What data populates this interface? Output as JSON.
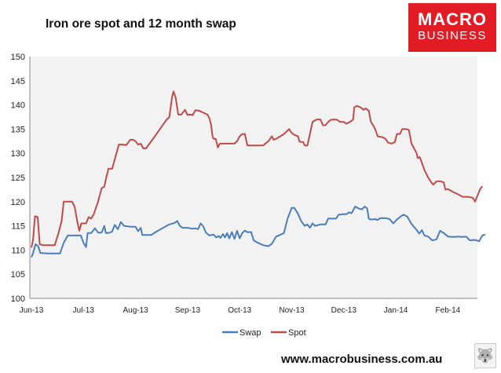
{
  "header": {
    "title": "Iron ore spot and 12 month swap",
    "logo_line1": "MACRO",
    "logo_line2": "BUSINESS"
  },
  "footer": {
    "url": "www.macrobusiness.com.au"
  },
  "colors": {
    "swap": "#4a7ebb",
    "spot": "#be4b48",
    "plot_bg": "#f2f2f2",
    "logo_bg": "#e11c24"
  },
  "chart_data": {
    "type": "line",
    "title": "Iron ore spot and 12 month swap",
    "xlabel": "",
    "ylabel": "",
    "ylim": [
      100,
      150
    ],
    "yticks": [
      100,
      105,
      110,
      115,
      120,
      125,
      130,
      135,
      140,
      145,
      150
    ],
    "xlim": [
      0,
      9.05
    ],
    "xticks": [
      {
        "label": "Jun-13",
        "x": 0
      },
      {
        "label": "Jul-13",
        "x": 1
      },
      {
        "label": "Aug-13",
        "x": 2
      },
      {
        "label": "Sep-13",
        "x": 3
      },
      {
        "label": "Oct-13",
        "x": 4
      },
      {
        "label": "Nov-13",
        "x": 5
      },
      {
        "label": "Dec-13",
        "x": 6
      },
      {
        "label": "Jan-14",
        "x": 7
      },
      {
        "label": "Feb-14",
        "x": 8
      }
    ],
    "legend": {
      "position": "bottom"
    },
    "grid": false,
    "series": [
      {
        "name": "Swap",
        "color": "#4a7ebb",
        "points": [
          [
            0.0,
            108.5
          ],
          [
            0.03,
            109.3
          ],
          [
            0.08,
            111.2
          ],
          [
            0.13,
            110.8
          ],
          [
            0.17,
            109.4
          ],
          [
            0.3,
            109.3
          ],
          [
            0.45,
            109.3
          ],
          [
            0.55,
            109.3
          ],
          [
            0.62,
            111.5
          ],
          [
            0.7,
            113.0
          ],
          [
            0.85,
            113.0
          ],
          [
            0.95,
            113.0
          ],
          [
            1.0,
            111.5
          ],
          [
            1.05,
            110.6
          ],
          [
            1.08,
            113.5
          ],
          [
            1.15,
            113.5
          ],
          [
            1.22,
            114.5
          ],
          [
            1.28,
            113.6
          ],
          [
            1.35,
            113.6
          ],
          [
            1.4,
            115.0
          ],
          [
            1.43,
            113.5
          ],
          [
            1.48,
            113.5
          ],
          [
            1.55,
            113.8
          ],
          [
            1.6,
            115.2
          ],
          [
            1.66,
            114.3
          ],
          [
            1.72,
            115.8
          ],
          [
            1.78,
            115.0
          ],
          [
            1.9,
            114.8
          ],
          [
            2.0,
            114.8
          ],
          [
            2.05,
            113.9
          ],
          [
            2.1,
            114.6
          ],
          [
            2.13,
            113.1
          ],
          [
            2.2,
            113.1
          ],
          [
            2.3,
            113.1
          ],
          [
            2.4,
            113.8
          ],
          [
            2.55,
            114.7
          ],
          [
            2.65,
            115.3
          ],
          [
            2.75,
            115.6
          ],
          [
            2.8,
            116.0
          ],
          [
            2.85,
            115.0
          ],
          [
            2.9,
            114.6
          ],
          [
            3.0,
            114.6
          ],
          [
            3.1,
            114.4
          ],
          [
            3.15,
            114.5
          ],
          [
            3.2,
            114.3
          ],
          [
            3.25,
            115.5
          ],
          [
            3.3,
            114.9
          ],
          [
            3.35,
            113.6
          ],
          [
            3.42,
            113.0
          ],
          [
            3.5,
            113.2
          ],
          [
            3.55,
            112.6
          ],
          [
            3.6,
            112.9
          ],
          [
            3.63,
            112.5
          ],
          [
            3.68,
            113.3
          ],
          [
            3.72,
            112.6
          ],
          [
            3.76,
            113.5
          ],
          [
            3.8,
            112.4
          ],
          [
            3.85,
            113.7
          ],
          [
            3.9,
            112.3
          ],
          [
            3.95,
            114.0
          ],
          [
            4.0,
            112.4
          ],
          [
            4.05,
            113.5
          ],
          [
            4.1,
            114.0
          ],
          [
            4.15,
            113.7
          ],
          [
            4.22,
            113.7
          ],
          [
            4.27,
            112.0
          ],
          [
            4.35,
            111.5
          ],
          [
            4.45,
            111.0
          ],
          [
            4.55,
            110.8
          ],
          [
            4.62,
            111.3
          ],
          [
            4.7,
            112.8
          ],
          [
            4.75,
            113.0
          ],
          [
            4.85,
            113.5
          ],
          [
            4.92,
            116.5
          ],
          [
            5.0,
            118.7
          ],
          [
            5.05,
            118.7
          ],
          [
            5.12,
            117.5
          ],
          [
            5.18,
            116.0
          ],
          [
            5.25,
            115.0
          ],
          [
            5.3,
            115.3
          ],
          [
            5.35,
            114.6
          ],
          [
            5.4,
            115.5
          ],
          [
            5.45,
            115.0
          ],
          [
            5.55,
            115.3
          ],
          [
            5.65,
            115.3
          ],
          [
            5.7,
            116.5
          ],
          [
            5.78,
            116.5
          ],
          [
            5.85,
            116.5
          ],
          [
            5.9,
            117.3
          ],
          [
            6.0,
            117.4
          ],
          [
            6.05,
            117.4
          ],
          [
            6.1,
            117.8
          ],
          [
            6.15,
            117.6
          ],
          [
            6.22,
            119.0
          ],
          [
            6.28,
            118.6
          ],
          [
            6.35,
            118.4
          ],
          [
            6.4,
            119.0
          ],
          [
            6.45,
            118.6
          ],
          [
            6.48,
            116.5
          ],
          [
            6.52,
            116.3
          ],
          [
            6.6,
            116.4
          ],
          [
            6.65,
            116.2
          ],
          [
            6.7,
            116.6
          ],
          [
            6.8,
            116.6
          ],
          [
            6.88,
            116.4
          ],
          [
            6.95,
            115.5
          ],
          [
            7.02,
            116.3
          ],
          [
            7.1,
            117.0
          ],
          [
            7.15,
            117.3
          ],
          [
            7.22,
            116.9
          ],
          [
            7.3,
            115.4
          ],
          [
            7.38,
            114.4
          ],
          [
            7.45,
            113.4
          ],
          [
            7.5,
            114.1
          ],
          [
            7.55,
            113.0
          ],
          [
            7.62,
            112.8
          ],
          [
            7.7,
            112.0
          ],
          [
            7.78,
            112.2
          ],
          [
            7.85,
            114.0
          ],
          [
            7.92,
            113.5
          ],
          [
            8.0,
            112.8
          ],
          [
            8.1,
            112.7
          ],
          [
            8.2,
            112.8
          ],
          [
            8.28,
            112.7
          ],
          [
            8.35,
            112.8
          ],
          [
            8.42,
            112.0
          ],
          [
            8.5,
            112.1
          ],
          [
            8.55,
            112.0
          ],
          [
            8.6,
            111.8
          ],
          [
            8.66,
            113.0
          ],
          [
            8.72,
            113.2
          ]
        ]
      },
      {
        "name": "Spot",
        "color": "#be4b48",
        "points": [
          [
            0.0,
            110.5
          ],
          [
            0.03,
            112.0
          ],
          [
            0.07,
            117.0
          ],
          [
            0.12,
            116.8
          ],
          [
            0.16,
            111.2
          ],
          [
            0.22,
            111.0
          ],
          [
            0.35,
            111.0
          ],
          [
            0.45,
            111.0
          ],
          [
            0.52,
            113.5
          ],
          [
            0.58,
            116.0
          ],
          [
            0.62,
            120.0
          ],
          [
            0.7,
            120.0
          ],
          [
            0.78,
            120.0
          ],
          [
            0.83,
            119.0
          ],
          [
            0.88,
            116.0
          ],
          [
            0.92,
            114.0
          ],
          [
            0.96,
            115.5
          ],
          [
            1.05,
            115.5
          ],
          [
            1.1,
            116.8
          ],
          [
            1.15,
            116.5
          ],
          [
            1.2,
            117.5
          ],
          [
            1.28,
            120.0
          ],
          [
            1.35,
            122.8
          ],
          [
            1.4,
            123.1
          ],
          [
            1.45,
            125.5
          ],
          [
            1.48,
            126.8
          ],
          [
            1.55,
            126.8
          ],
          [
            1.62,
            129.5
          ],
          [
            1.68,
            131.8
          ],
          [
            1.75,
            131.8
          ],
          [
            1.82,
            131.7
          ],
          [
            1.9,
            132.8
          ],
          [
            1.95,
            132.8
          ],
          [
            2.0,
            132.5
          ],
          [
            2.05,
            131.8
          ],
          [
            2.1,
            132.0
          ],
          [
            2.15,
            131.0
          ],
          [
            2.2,
            131.0
          ],
          [
            2.35,
            133.2
          ],
          [
            2.5,
            135.5
          ],
          [
            2.6,
            137.0
          ],
          [
            2.65,
            137.5
          ],
          [
            2.7,
            141.5
          ],
          [
            2.73,
            142.8
          ],
          [
            2.77,
            141.5
          ],
          [
            2.82,
            138.0
          ],
          [
            2.88,
            138.0
          ],
          [
            2.95,
            139.0
          ],
          [
            3.0,
            137.9
          ],
          [
            3.05,
            138.0
          ],
          [
            3.1,
            137.9
          ],
          [
            3.15,
            138.9
          ],
          [
            3.22,
            138.8
          ],
          [
            3.3,
            138.4
          ],
          [
            3.38,
            138.0
          ],
          [
            3.42,
            137.2
          ],
          [
            3.45,
            136.0
          ],
          [
            3.48,
            133.5
          ],
          [
            3.5,
            133.0
          ],
          [
            3.54,
            133.0
          ],
          [
            3.58,
            131.2
          ],
          [
            3.62,
            132.0
          ],
          [
            3.7,
            132.0
          ],
          [
            3.8,
            132.0
          ],
          [
            3.9,
            132.0
          ],
          [
            3.95,
            132.5
          ],
          [
            4.0,
            133.5
          ],
          [
            4.05,
            134.0
          ],
          [
            4.1,
            134.0
          ],
          [
            4.15,
            131.6
          ],
          [
            4.2,
            131.6
          ],
          [
            4.35,
            131.6
          ],
          [
            4.45,
            131.6
          ],
          [
            4.55,
            132.5
          ],
          [
            4.62,
            133.5
          ],
          [
            4.65,
            132.8
          ],
          [
            4.7,
            133.0
          ],
          [
            4.78,
            133.5
          ],
          [
            4.85,
            134.0
          ],
          [
            4.9,
            134.5
          ],
          [
            4.95,
            135.0
          ],
          [
            5.0,
            134.2
          ],
          [
            5.05,
            133.8
          ],
          [
            5.12,
            133.5
          ],
          [
            5.15,
            132.4
          ],
          [
            5.22,
            132.3
          ],
          [
            5.25,
            131.6
          ],
          [
            5.3,
            131.6
          ],
          [
            5.35,
            134.0
          ],
          [
            5.4,
            136.5
          ],
          [
            5.48,
            137.0
          ],
          [
            5.55,
            137.0
          ],
          [
            5.6,
            135.8
          ],
          [
            5.65,
            135.8
          ],
          [
            5.7,
            136.5
          ],
          [
            5.75,
            136.9
          ],
          [
            5.82,
            137.0
          ],
          [
            5.88,
            136.9
          ],
          [
            5.92,
            136.5
          ],
          [
            6.0,
            136.5
          ],
          [
            6.05,
            136.1
          ],
          [
            6.12,
            136.5
          ],
          [
            6.18,
            137.0
          ],
          [
            6.2,
            139.5
          ],
          [
            6.25,
            139.8
          ],
          [
            6.32,
            139.5
          ],
          [
            6.38,
            139.0
          ],
          [
            6.42,
            139.3
          ],
          [
            6.48,
            138.8
          ],
          [
            6.52,
            136.5
          ],
          [
            6.58,
            135.5
          ],
          [
            6.62,
            134.5
          ],
          [
            6.65,
            133.5
          ],
          [
            6.75,
            133.3
          ],
          [
            6.8,
            133.0
          ],
          [
            6.85,
            132.2
          ],
          [
            6.92,
            132.0
          ],
          [
            6.98,
            132.3
          ],
          [
            7.02,
            134.0
          ],
          [
            7.08,
            134.0
          ],
          [
            7.12,
            135.0
          ],
          [
            7.2,
            135.0
          ],
          [
            7.25,
            134.8
          ],
          [
            7.3,
            132.0
          ],
          [
            7.35,
            131.0
          ],
          [
            7.4,
            130.0
          ],
          [
            7.42,
            129.0
          ],
          [
            7.46,
            129.2
          ],
          [
            7.5,
            128.0
          ],
          [
            7.55,
            126.5
          ],
          [
            7.62,
            125.0
          ],
          [
            7.68,
            124.0
          ],
          [
            7.72,
            123.5
          ],
          [
            7.78,
            124.2
          ],
          [
            7.85,
            124.2
          ],
          [
            7.92,
            124.0
          ],
          [
            7.95,
            122.5
          ],
          [
            8.0,
            122.6
          ],
          [
            8.1,
            122.0
          ],
          [
            8.2,
            121.5
          ],
          [
            8.28,
            121.0
          ],
          [
            8.38,
            121.0
          ],
          [
            8.48,
            120.8
          ],
          [
            8.52,
            120.0
          ],
          [
            8.56,
            121.0
          ],
          [
            8.62,
            122.6
          ],
          [
            8.66,
            123.2
          ]
        ]
      }
    ]
  }
}
